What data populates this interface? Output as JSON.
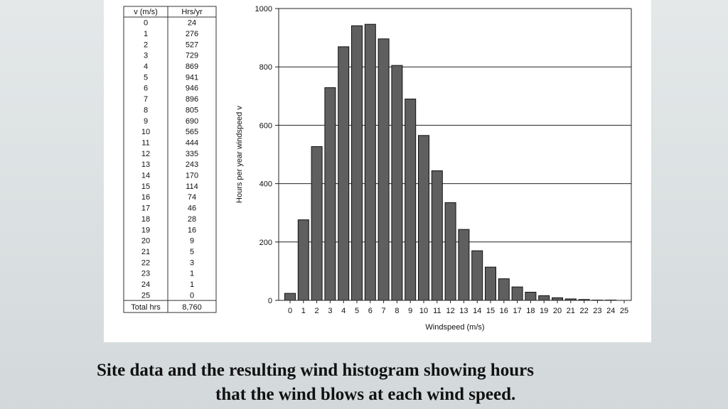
{
  "table": {
    "headers": [
      "v (m/s)",
      "Hrs/yr"
    ],
    "rows": [
      [
        "0",
        "24"
      ],
      [
        "1",
        "276"
      ],
      [
        "2",
        "527"
      ],
      [
        "3",
        "729"
      ],
      [
        "4",
        "869"
      ],
      [
        "5",
        "941"
      ],
      [
        "6",
        "946"
      ],
      [
        "7",
        "896"
      ],
      [
        "8",
        "805"
      ],
      [
        "9",
        "690"
      ],
      [
        "10",
        "565"
      ],
      [
        "11",
        "444"
      ],
      [
        "12",
        "335"
      ],
      [
        "13",
        "243"
      ],
      [
        "14",
        "170"
      ],
      [
        "15",
        "114"
      ],
      [
        "16",
        "74"
      ],
      [
        "17",
        "46"
      ],
      [
        "18",
        "28"
      ],
      [
        "19",
        "16"
      ],
      [
        "20",
        "9"
      ],
      [
        "21",
        "5"
      ],
      [
        "22",
        "3"
      ],
      [
        "23",
        "1"
      ],
      [
        "24",
        "1"
      ],
      [
        "25",
        "0"
      ]
    ],
    "total": [
      "Total hrs",
      "8,760"
    ]
  },
  "chart_data": {
    "type": "bar",
    "categories": [
      "0",
      "1",
      "2",
      "3",
      "4",
      "5",
      "6",
      "7",
      "8",
      "9",
      "10",
      "11",
      "12",
      "13",
      "14",
      "15",
      "16",
      "17",
      "18",
      "19",
      "20",
      "21",
      "22",
      "23",
      "24",
      "25"
    ],
    "values": [
      24,
      276,
      527,
      729,
      869,
      941,
      946,
      896,
      805,
      690,
      565,
      444,
      335,
      243,
      170,
      114,
      74,
      46,
      28,
      16,
      9,
      5,
      3,
      1,
      1,
      0
    ],
    "xlabel": "Windspeed (m/s)",
    "ylabel": "Hours per year windspeed v",
    "ylim": [
      0,
      1000
    ],
    "yticks": [
      0,
      200,
      400,
      600,
      800,
      1000
    ],
    "grid": true,
    "bar_color": "#5f5f5f"
  },
  "caption": {
    "line1": "Site data and the resulting wind histogram showing hours",
    "line2": "that the wind blows at each wind speed."
  }
}
